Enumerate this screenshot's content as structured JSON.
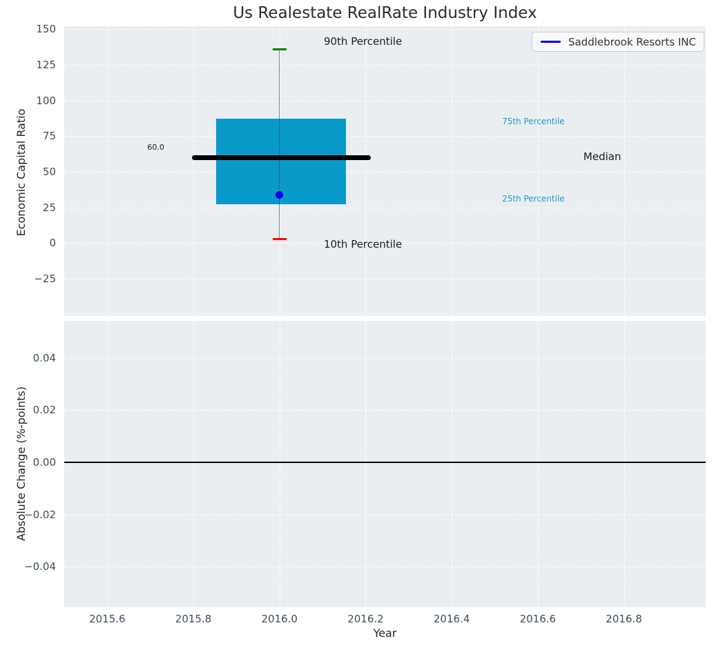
{
  "figure": {
    "colors": {
      "figure_bg": "#ffffff",
      "axes_bg": "#ebeef0",
      "grid": "#ffffff",
      "tick_label": "#3d4c5c",
      "text": "#1f1f1f",
      "box_fill": "#089ac9",
      "median_line": "#000000",
      "whisker": "#808080",
      "cap_top": "#008000",
      "cap_bottom": "#ff0000",
      "company_marker": "#0000ee",
      "percentile_label": "#1a9ad1",
      "zero_line": "#000000"
    }
  },
  "chart_data": [
    {
      "type": "boxplot",
      "title": "Us Realestate RealRate Industry Index",
      "xlabel": "Year",
      "ylabel": "Economic Capital Ratio",
      "xlim": [
        2015.5,
        2016.99
      ],
      "ylim": [
        -51,
        152
      ],
      "grid": {
        "style": "dashed",
        "color": "#ffffff"
      },
      "yticks": [
        {
          "v": 150,
          "label": "150"
        },
        {
          "v": 125,
          "label": "125"
        },
        {
          "v": 100,
          "label": "100"
        },
        {
          "v": 75,
          "label": "75"
        },
        {
          "v": 50,
          "label": "50"
        },
        {
          "v": 25,
          "label": "25"
        },
        {
          "v": 0,
          "label": "0"
        },
        {
          "v": -25,
          "label": "−25"
        }
      ],
      "legend": {
        "label": "Saddlebrook Resorts INC",
        "line_color": "#0000ee",
        "position": "upper right"
      },
      "box": {
        "x_center": 2016.0,
        "x_left": 2015.853,
        "x_right": 2016.154,
        "median_x_left": 2015.796,
        "median_x_right": 2016.212,
        "cap_half_width": 0.016,
        "p90": 136,
        "p75": 87,
        "median": 60.0,
        "p25": 27.5,
        "p10": 3
      },
      "company_point": {
        "name": "Saddlebrook Resorts INC",
        "x": 2016.0,
        "value": 34
      },
      "annotations": [
        {
          "text": "90th Percentile",
          "x": 2016.103,
          "y": 141,
          "size": 15,
          "color": "#1a1a1a"
        },
        {
          "text": "10th Percentile",
          "x": 2016.103,
          "y": -1,
          "size": 15,
          "color": "#1a1a1a"
        },
        {
          "text": "75th Percentile",
          "x": 2016.517,
          "y": 85,
          "size": 12,
          "color": "#1a9ad1"
        },
        {
          "text": "25th Percentile",
          "x": 2016.517,
          "y": 31,
          "size": 12,
          "color": "#1a9ad1"
        },
        {
          "text": "Median",
          "x": 2016.706,
          "y": 60,
          "size": 15,
          "color": "#1a1a1a"
        },
        {
          "text": "60.0",
          "x": 2015.693,
          "y": 67,
          "size": 11,
          "color": "#1a1a1a"
        }
      ]
    },
    {
      "type": "line",
      "xlabel": "Year",
      "ylabel": "Absolute Change (%-points)",
      "xlim": [
        2015.5,
        2016.99
      ],
      "ylim": [
        -0.0555,
        0.0542
      ],
      "grid": {
        "style": "dashed",
        "color": "#ffffff"
      },
      "yticks": [
        {
          "v": 0.04,
          "label": "0.04"
        },
        {
          "v": 0.02,
          "label": "0.02"
        },
        {
          "v": 0.0,
          "label": "0.00"
        },
        {
          "v": -0.02,
          "label": "−0.02"
        },
        {
          "v": -0.04,
          "label": "−0.04"
        }
      ],
      "xticks": [
        {
          "v": 2015.6,
          "label": "2015.6"
        },
        {
          "v": 2015.8,
          "label": "2015.8"
        },
        {
          "v": 2016.0,
          "label": "2016.0"
        },
        {
          "v": 2016.2,
          "label": "2016.2"
        },
        {
          "v": 2016.4,
          "label": "2016.4"
        },
        {
          "v": 2016.6,
          "label": "2016.6"
        },
        {
          "v": 2016.8,
          "label": "2016.8"
        }
      ],
      "zero_line": 0.0,
      "series": []
    }
  ]
}
